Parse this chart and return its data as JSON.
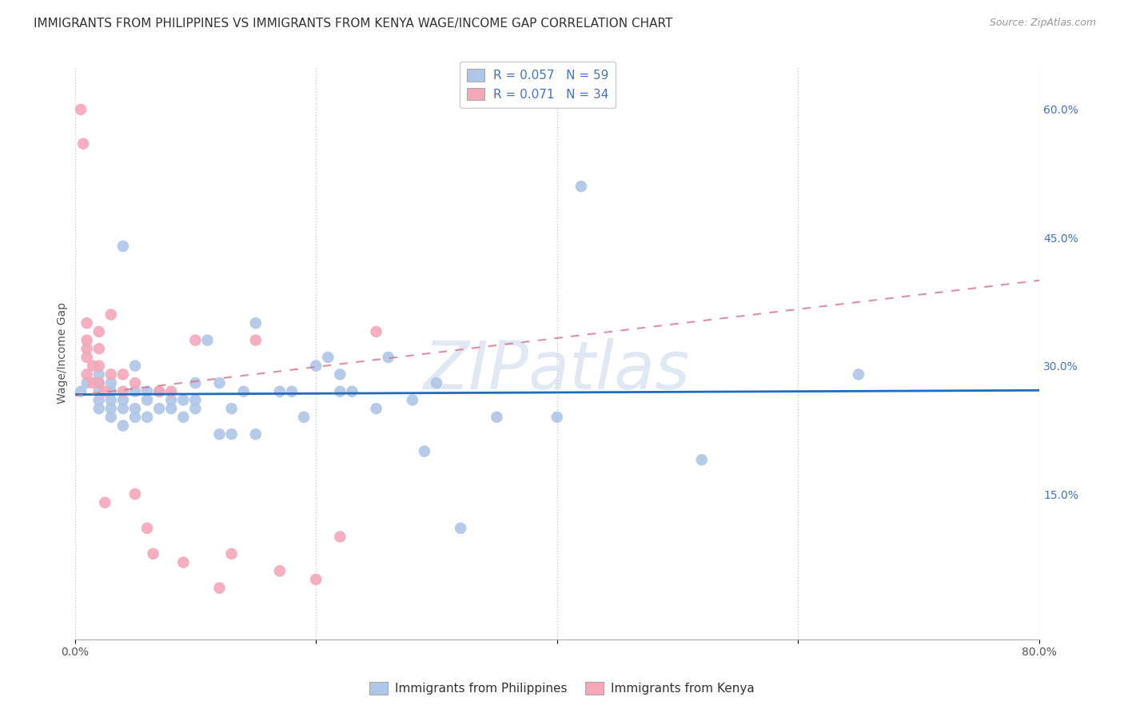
{
  "title": "IMMIGRANTS FROM PHILIPPINES VS IMMIGRANTS FROM KENYA WAGE/INCOME GAP CORRELATION CHART",
  "source": "Source: ZipAtlas.com",
  "ylabel": "Wage/Income Gap",
  "xlim": [
    0.0,
    0.8
  ],
  "ylim": [
    -0.02,
    0.65
  ],
  "xtick_positions": [
    0.0,
    0.2,
    0.4,
    0.6,
    0.8
  ],
  "xtick_labels": [
    "0.0%",
    "",
    "",
    "",
    "80.0%"
  ],
  "ytick_labels_right": [
    "60.0%",
    "45.0%",
    "30.0%",
    "15.0%"
  ],
  "ytick_positions_right": [
    0.6,
    0.45,
    0.3,
    0.15
  ],
  "R_philippines": 0.057,
  "N_philippines": 59,
  "R_kenya": 0.071,
  "N_kenya": 34,
  "color_philippines": "#aec6e8",
  "color_kenya": "#f4a7b9",
  "trendline_philippines_color": "#1f6dbf",
  "trendline_kenya_color": "#d4748a",
  "background_color": "#ffffff",
  "grid_color": "#cccccc",
  "philippines_x": [
    0.005,
    0.01,
    0.02,
    0.02,
    0.02,
    0.02,
    0.02,
    0.03,
    0.03,
    0.03,
    0.03,
    0.03,
    0.04,
    0.04,
    0.04,
    0.04,
    0.05,
    0.05,
    0.05,
    0.05,
    0.06,
    0.06,
    0.06,
    0.07,
    0.07,
    0.08,
    0.08,
    0.09,
    0.09,
    0.1,
    0.1,
    0.1,
    0.11,
    0.12,
    0.12,
    0.13,
    0.13,
    0.14,
    0.15,
    0.15,
    0.17,
    0.18,
    0.19,
    0.2,
    0.21,
    0.22,
    0.22,
    0.23,
    0.25,
    0.26,
    0.28,
    0.29,
    0.3,
    0.32,
    0.35,
    0.4,
    0.42,
    0.52,
    0.65
  ],
  "philippines_y": [
    0.27,
    0.28,
    0.25,
    0.26,
    0.27,
    0.28,
    0.29,
    0.24,
    0.25,
    0.26,
    0.27,
    0.28,
    0.23,
    0.25,
    0.26,
    0.44,
    0.24,
    0.25,
    0.27,
    0.3,
    0.24,
    0.26,
    0.27,
    0.25,
    0.27,
    0.25,
    0.26,
    0.24,
    0.26,
    0.25,
    0.26,
    0.28,
    0.33,
    0.22,
    0.28,
    0.22,
    0.25,
    0.27,
    0.22,
    0.35,
    0.27,
    0.27,
    0.24,
    0.3,
    0.31,
    0.27,
    0.29,
    0.27,
    0.25,
    0.31,
    0.26,
    0.2,
    0.28,
    0.11,
    0.24,
    0.24,
    0.51,
    0.19,
    0.29
  ],
  "kenya_x": [
    0.005,
    0.007,
    0.01,
    0.01,
    0.01,
    0.01,
    0.01,
    0.015,
    0.015,
    0.02,
    0.02,
    0.02,
    0.02,
    0.025,
    0.025,
    0.03,
    0.03,
    0.04,
    0.04,
    0.05,
    0.05,
    0.06,
    0.065,
    0.07,
    0.08,
    0.09,
    0.1,
    0.12,
    0.13,
    0.15,
    0.17,
    0.2,
    0.22,
    0.25
  ],
  "kenya_y": [
    0.6,
    0.56,
    0.35,
    0.33,
    0.32,
    0.31,
    0.29,
    0.3,
    0.28,
    0.34,
    0.32,
    0.3,
    0.28,
    0.27,
    0.14,
    0.36,
    0.29,
    0.29,
    0.27,
    0.28,
    0.15,
    0.11,
    0.08,
    0.27,
    0.27,
    0.07,
    0.33,
    0.04,
    0.08,
    0.33,
    0.06,
    0.05,
    0.1,
    0.34
  ],
  "watermark": "ZIPatlas",
  "title_fontsize": 11,
  "axis_label_fontsize": 10,
  "tick_fontsize": 10,
  "legend_fontsize": 11
}
